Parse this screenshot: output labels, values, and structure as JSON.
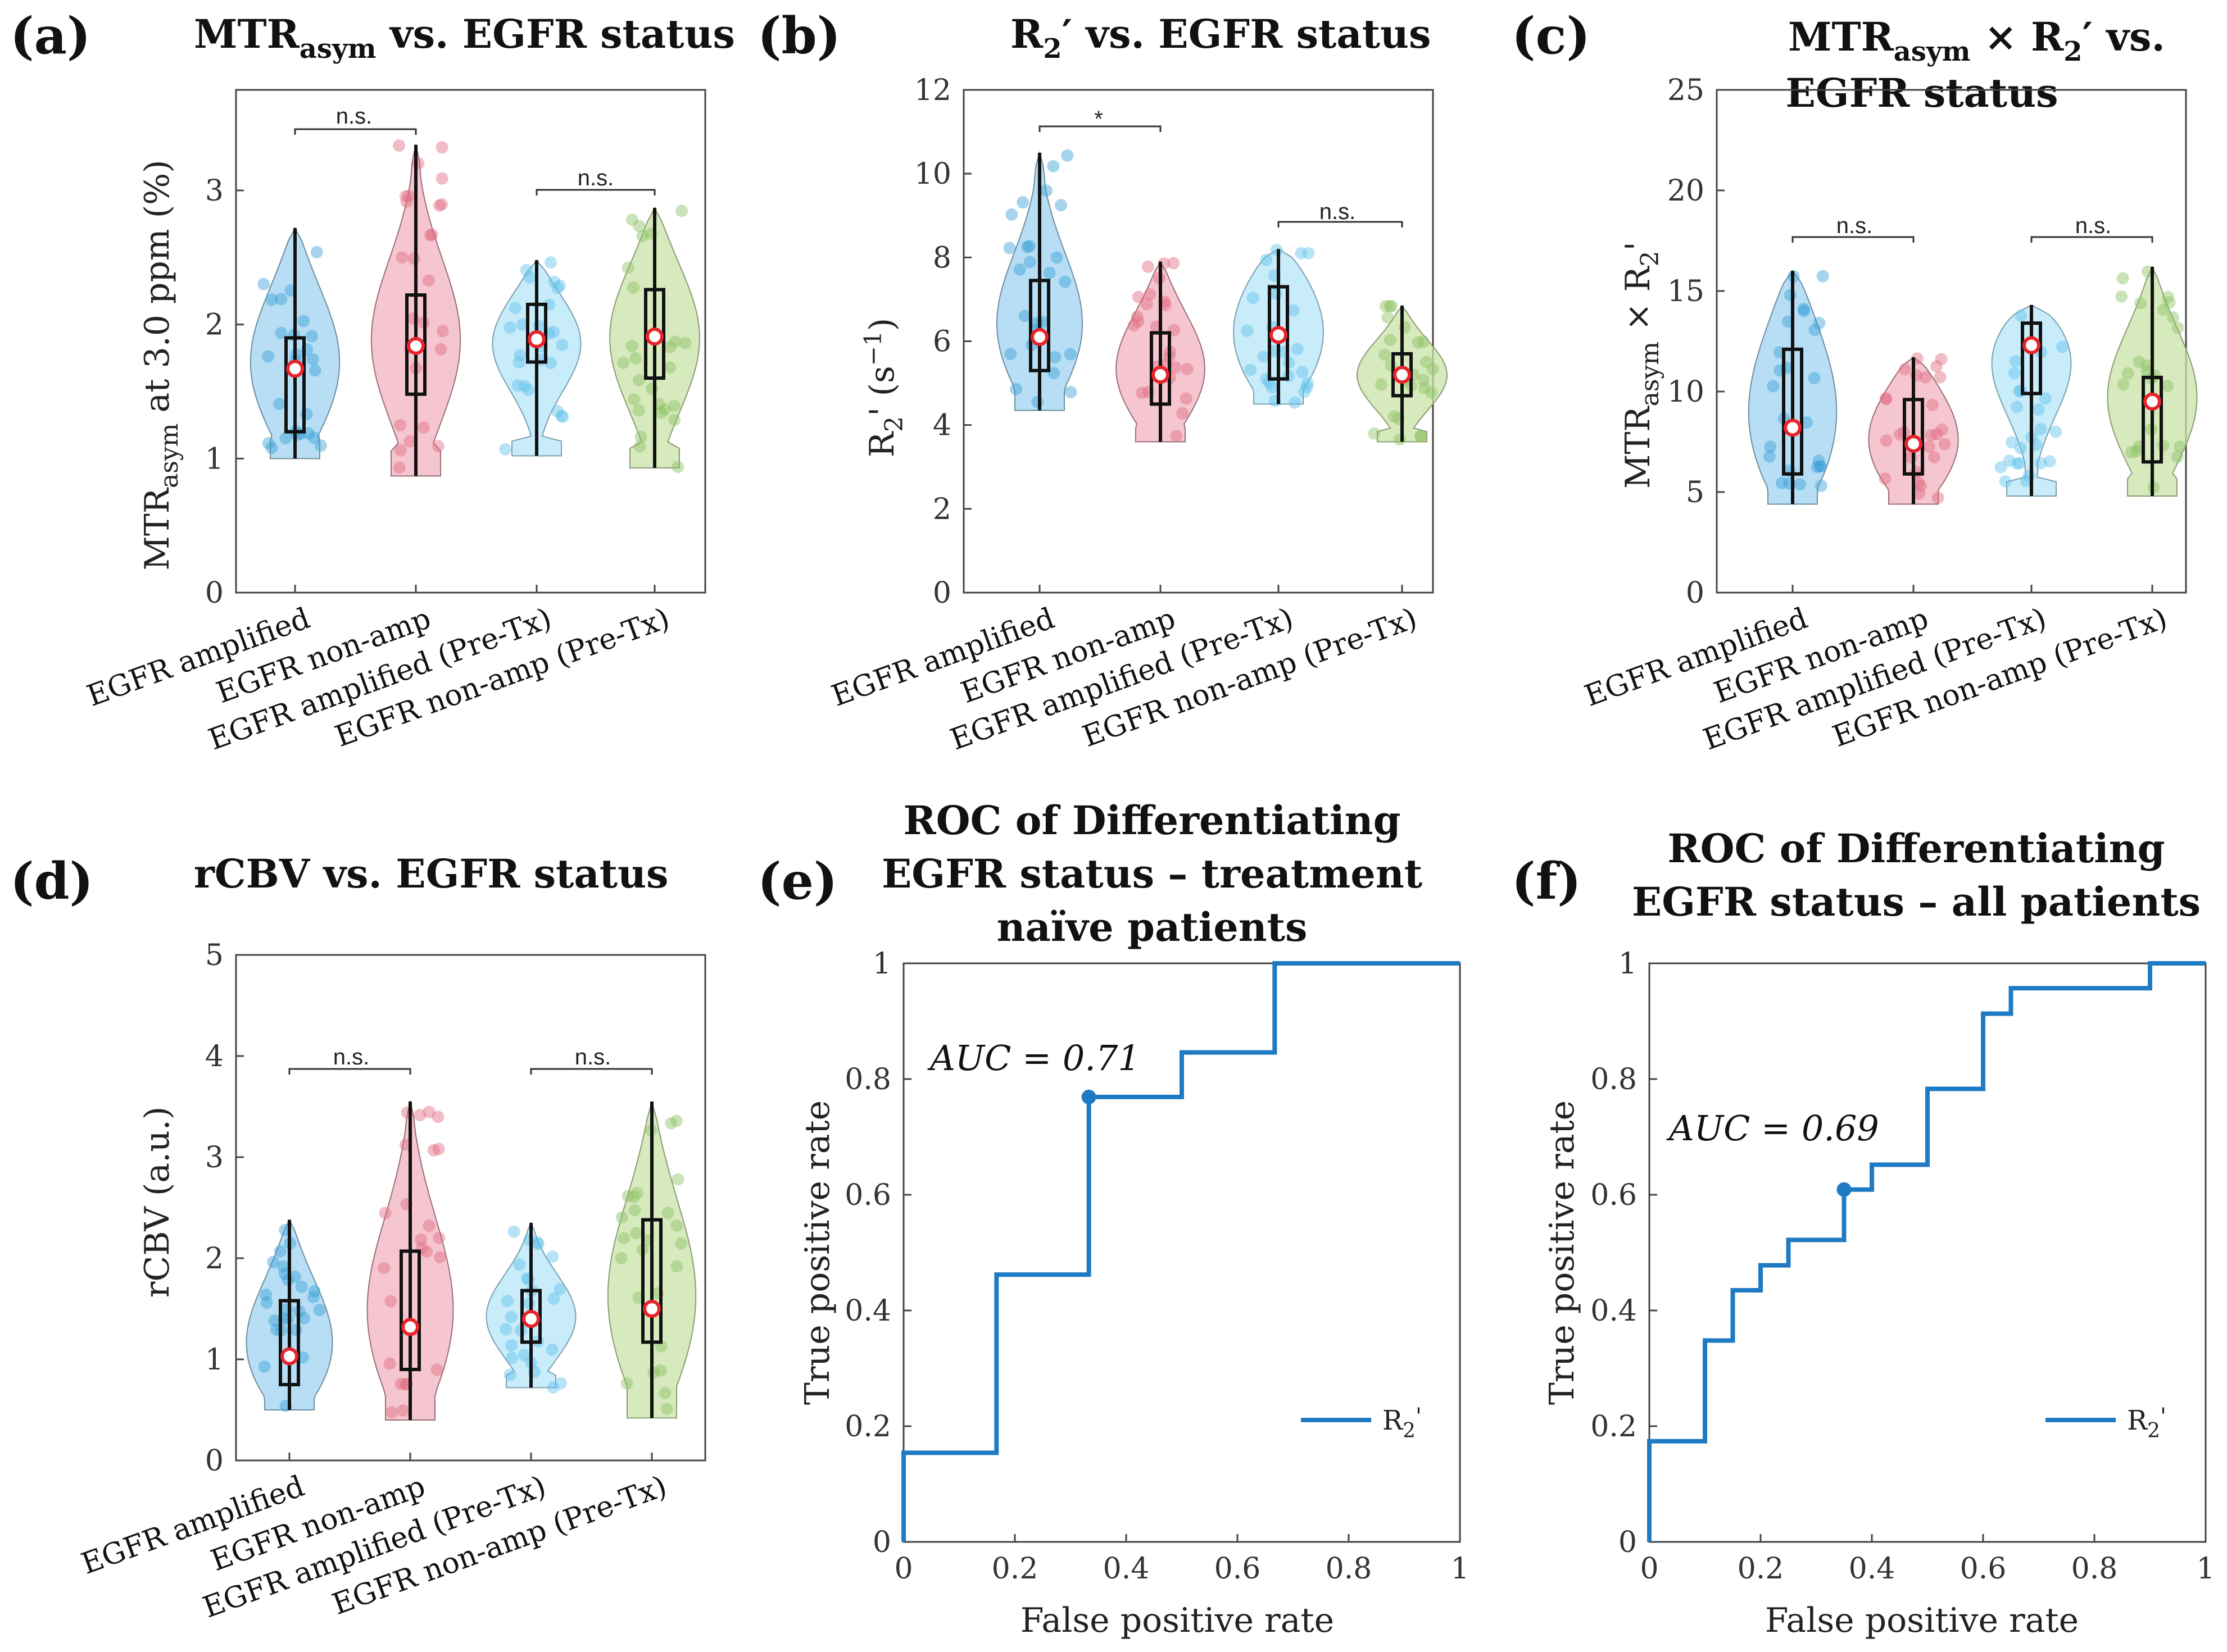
{
  "colors": {
    "amp": "#3aa0d8",
    "amp_fill": "#9fd3f0",
    "nonamp": "#e06a80",
    "nonamp_fill": "#f2b3c0",
    "preamp_fill": "#b6e6f8",
    "prenon_fill": "#c9e3a8",
    "prenon": "#8cc063",
    "roc": "#1f7ac4",
    "median": "#e8242c"
  },
  "panels": {
    "a": {
      "letter": "(a)",
      "title": "MTR",
      "title_sub": "asym",
      "title_rest": " vs. EGFR status",
      "ylabel": "MTR",
      "ylabel_sub": "asym",
      "ylabel_rest": " at 3.0 ppm (%)",
      "sig_left": "n.s.",
      "sig_right": "n.s."
    },
    "b": {
      "letter": "(b)",
      "title": "R",
      "title_sub": "2",
      "title_rest": "′ vs. EGFR status",
      "ylabel": "R",
      "ylabel_sub": "2",
      "ylabel_rest": "' (s",
      "ylabel_sup": "−1",
      "ylabel_end": ")",
      "sig_left": "*",
      "sig_right": "n.s."
    },
    "c": {
      "letter": "(c)",
      "title": "MTR",
      "title_sub": "asym",
      "title_rest": " × R",
      "title_sub2": "2",
      "title_end": "′ vs.",
      "title_line2": "EGFR status",
      "ylabel": "MTR",
      "ylabel_sub": "asym",
      "ylabel_rest": " × R",
      "ylabel_sub2": "2",
      "ylabel_end": "'",
      "sig_left": "n.s.",
      "sig_right": "n.s."
    },
    "d": {
      "letter": "(d)",
      "title": "rCBV vs. EGFR status",
      "ylabel": "rCBV (a.u.)",
      "sig_left": "n.s.",
      "sig_right": "n.s."
    },
    "e": {
      "letter": "(e)",
      "title_line1": "ROC of Differentiating",
      "title_line2": "EGFR status – treatment",
      "title_line3": "naïve patients",
      "xlabel": "False positive rate",
      "ylabel": "True positive rate",
      "auc": "AUC = 0.71",
      "legend": "R",
      "legend_sub": "2",
      "legend_end": "'"
    },
    "f": {
      "letter": "(f)",
      "title_line1": "ROC of Differentiating",
      "title_line2": "EGFR status – all patients",
      "xlabel": "False positive rate",
      "ylabel": "True positive rate",
      "auc": "AUC = 0.69",
      "legend": "R",
      "legend_sub": "2",
      "legend_end": "'"
    }
  },
  "chart_data": [
    {
      "id": "a",
      "type": "violin",
      "categories": [
        "EGFR amplified",
        "EGFR non-amp",
        "EGFR amplified (Pre-Tx)",
        "EGFR non-amp (Pre-Tx)"
      ],
      "ylim": [
        0,
        3.75
      ],
      "yticks": [
        0,
        1,
        2,
        3
      ],
      "groups": [
        {
          "min": 1.0,
          "q1": 1.2,
          "median": 1.67,
          "q3": 1.9,
          "max": 2.72,
          "color": "amp"
        },
        {
          "min": 0.87,
          "q1": 1.48,
          "median": 1.84,
          "q3": 2.22,
          "max": 3.34,
          "color": "nonamp"
        },
        {
          "min": 1.02,
          "q1": 1.72,
          "median": 1.89,
          "q3": 2.15,
          "max": 2.48,
          "color": "preamp"
        },
        {
          "min": 0.93,
          "q1": 1.6,
          "median": 1.91,
          "q3": 2.26,
          "max": 2.87,
          "color": "prenon"
        }
      ]
    },
    {
      "id": "b",
      "type": "violin",
      "categories": [
        "EGFR amplified",
        "EGFR non-amp",
        "EGFR amplified (Pre-Tx)",
        "EGFR non-amp (Pre-Tx)"
      ],
      "ylim": [
        0,
        12
      ],
      "yticks": [
        0,
        2,
        4,
        6,
        8,
        10,
        12
      ],
      "groups": [
        {
          "min": 4.35,
          "q1": 5.3,
          "median": 6.1,
          "q3": 7.45,
          "max": 10.5,
          "color": "amp"
        },
        {
          "min": 3.6,
          "q1": 4.5,
          "median": 5.2,
          "q3": 6.2,
          "max": 7.9,
          "color": "nonamp"
        },
        {
          "min": 4.5,
          "q1": 5.1,
          "median": 6.15,
          "q3": 7.3,
          "max": 8.2,
          "color": "preamp"
        },
        {
          "min": 3.6,
          "q1": 4.7,
          "median": 5.2,
          "q3": 5.7,
          "max": 6.85,
          "color": "prenon"
        }
      ]
    },
    {
      "id": "c",
      "type": "violin",
      "categories": [
        "EGFR amplified",
        "EGFR non-amp",
        "EGFR amplified (Pre-Tx)",
        "EGFR non-amp (Pre-Tx)"
      ],
      "ylim": [
        0,
        25
      ],
      "yticks": [
        0,
        5,
        10,
        15,
        20,
        25
      ],
      "groups": [
        {
          "min": 4.4,
          "q1": 5.9,
          "median": 8.2,
          "q3": 12.1,
          "max": 16.0,
          "color": "amp"
        },
        {
          "min": 4.4,
          "q1": 5.9,
          "median": 7.4,
          "q3": 9.6,
          "max": 11.7,
          "color": "nonamp"
        },
        {
          "min": 4.8,
          "q1": 9.9,
          "median": 12.3,
          "q3": 13.4,
          "max": 14.3,
          "color": "preamp"
        },
        {
          "min": 4.8,
          "q1": 6.5,
          "median": 9.5,
          "q3": 10.7,
          "max": 16.2,
          "color": "prenon"
        }
      ]
    },
    {
      "id": "d",
      "type": "violin",
      "categories": [
        "EGFR amplified",
        "EGFR non-amp",
        "EGFR amplified (Pre-Tx)",
        "EGFR non-amp (Pre-Tx)"
      ],
      "ylim": [
        0,
        5
      ],
      "yticks": [
        0,
        1,
        2,
        3,
        4,
        5
      ],
      "groups": [
        {
          "min": 0.5,
          "q1": 0.75,
          "median": 1.03,
          "q3": 1.58,
          "max": 2.38,
          "color": "amp"
        },
        {
          "min": 0.4,
          "q1": 0.9,
          "median": 1.32,
          "q3": 2.07,
          "max": 3.55,
          "color": "nonamp"
        },
        {
          "min": 0.72,
          "q1": 1.17,
          "median": 1.4,
          "q3": 1.68,
          "max": 2.35,
          "color": "preamp"
        },
        {
          "min": 0.42,
          "q1": 1.17,
          "median": 1.5,
          "q3": 2.38,
          "max": 3.55,
          "color": "prenon"
        }
      ]
    },
    {
      "id": "e",
      "type": "line",
      "title": "ROC of Differentiating EGFR status – treatment naïve patients",
      "xlim": [
        0,
        1
      ],
      "ylim": [
        0,
        1
      ],
      "xticks": [
        0,
        0.2,
        0.4,
        0.6,
        0.8,
        1
      ],
      "yticks": [
        0,
        0.2,
        0.4,
        0.6,
        0.8,
        1
      ],
      "series": [
        {
          "name": "R2'",
          "x": [
            0,
            0,
            0.167,
            0.167,
            0.333,
            0.333,
            0.5,
            0.5,
            0.667,
            0.667,
            1.0
          ],
          "y": [
            0,
            0.154,
            0.154,
            0.462,
            0.462,
            0.769,
            0.769,
            0.846,
            0.846,
            1.0,
            1.0
          ]
        }
      ],
      "marker": {
        "x": 0.333,
        "y": 0.769
      },
      "auc": 0.71
    },
    {
      "id": "f",
      "type": "line",
      "title": "ROC of Differentiating EGFR status – all patients",
      "xlim": [
        0,
        1
      ],
      "ylim": [
        0,
        1
      ],
      "xticks": [
        0,
        0.2,
        0.4,
        0.6,
        0.8,
        1
      ],
      "yticks": [
        0,
        0.2,
        0.4,
        0.6,
        0.8,
        1
      ],
      "series": [
        {
          "name": "R2'",
          "x": [
            0,
            0,
            0.1,
            0.1,
            0.15,
            0.15,
            0.2,
            0.2,
            0.25,
            0.25,
            0.35,
            0.35,
            0.4,
            0.4,
            0.5,
            0.5,
            0.6,
            0.6,
            0.65,
            0.65,
            0.9,
            0.9,
            1.0
          ],
          "y": [
            0,
            0.174,
            0.174,
            0.348,
            0.348,
            0.435,
            0.435,
            0.478,
            0.478,
            0.522,
            0.522,
            0.609,
            0.609,
            0.652,
            0.652,
            0.783,
            0.783,
            0.913,
            0.913,
            0.957,
            0.957,
            1.0,
            1.0
          ]
        }
      ],
      "marker": {
        "x": 0.35,
        "y": 0.609
      },
      "auc": 0.69
    }
  ]
}
